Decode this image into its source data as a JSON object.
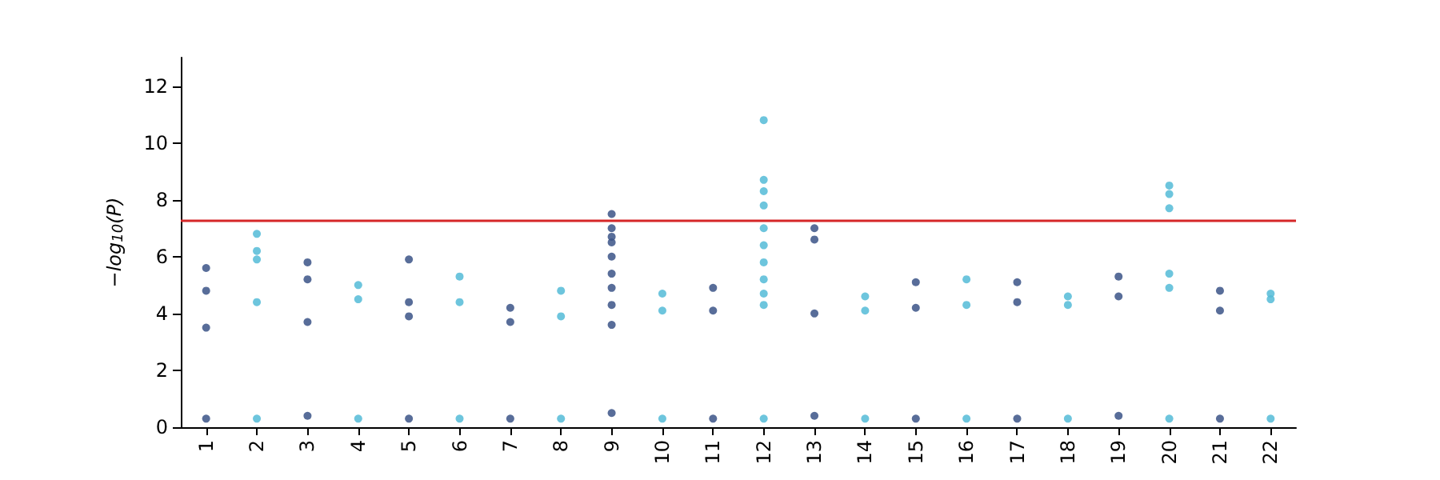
{
  "chart_data": {
    "type": "scatter",
    "ylabel": "−log$_{10}$(P)",
    "marker": "circle",
    "grid": false,
    "categories": [
      "1",
      "2",
      "3",
      "4",
      "5",
      "6",
      "7",
      "8",
      "9",
      "10",
      "11",
      "12",
      "13",
      "14",
      "15",
      "16",
      "17",
      "18",
      "19",
      "20",
      "21",
      "22"
    ],
    "ylim": [
      0,
      13
    ],
    "yticks": [
      0,
      2,
      4,
      6,
      8,
      10,
      12
    ],
    "ref_lines": [
      {
        "axis": "y",
        "value": 7.3,
        "color": "#d62728"
      }
    ],
    "series": [
      {
        "color": "#3b5387",
        "x": [
          "1",
          "1",
          "1",
          "1",
          "3",
          "3",
          "3",
          "3",
          "5",
          "5",
          "5",
          "5",
          "7",
          "7",
          "7",
          "9",
          "9",
          "9",
          "9",
          "9",
          "9",
          "9",
          "9",
          "9",
          "9",
          "11",
          "11",
          "11",
          "13",
          "13",
          "13",
          "13",
          "15",
          "15",
          "15",
          "17",
          "17",
          "17",
          "19",
          "19",
          "19",
          "21",
          "21",
          "21"
        ],
        "values": [
          0.3,
          3.5,
          4.8,
          5.6,
          0.4,
          3.7,
          5.2,
          5.8,
          0.3,
          3.9,
          4.4,
          5.9,
          0.3,
          3.7,
          4.2,
          0.5,
          3.6,
          4.3,
          4.9,
          5.4,
          6.0,
          6.5,
          6.7,
          7.0,
          7.5,
          0.3,
          4.1,
          4.9,
          0.4,
          4.0,
          6.6,
          7.0,
          0.3,
          4.2,
          5.1,
          0.3,
          4.4,
          5.1,
          0.4,
          4.6,
          5.3,
          0.3,
          4.1,
          4.8
        ]
      },
      {
        "color": "#54bbd7",
        "x": [
          "2",
          "2",
          "2",
          "2",
          "2",
          "4",
          "4",
          "4",
          "6",
          "6",
          "6",
          "8",
          "8",
          "8",
          "10",
          "10",
          "10",
          "12",
          "12",
          "12",
          "12",
          "12",
          "12",
          "12",
          "12",
          "12",
          "12",
          "12",
          "14",
          "14",
          "14",
          "16",
          "16",
          "16",
          "18",
          "18",
          "18",
          "20",
          "20",
          "20",
          "20",
          "20",
          "20",
          "22",
          "22",
          "22"
        ],
        "values": [
          0.3,
          4.4,
          5.9,
          6.2,
          6.8,
          0.3,
          4.5,
          5.0,
          0.3,
          4.4,
          5.3,
          0.3,
          3.9,
          4.8,
          0.3,
          4.1,
          4.7,
          0.3,
          4.3,
          4.7,
          5.2,
          5.8,
          6.4,
          7.0,
          7.8,
          8.3,
          8.7,
          10.8,
          0.3,
          4.1,
          4.6,
          0.3,
          4.3,
          5.2,
          0.3,
          4.3,
          4.6,
          0.3,
          4.9,
          5.4,
          7.7,
          8.2,
          8.5,
          0.3,
          4.5,
          4.7
        ]
      }
    ]
  }
}
